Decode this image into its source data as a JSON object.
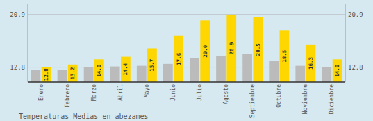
{
  "chart_data": {
    "type": "bar",
    "title": "Temperaturas Medias en abezames",
    "categories": [
      "Enero",
      "Febrero",
      "Marzo",
      "Abril",
      "Mayo",
      "Junio",
      "Julio",
      "Agosto",
      "Septiembre",
      "Octubre",
      "Noviembre",
      "Diciembre"
    ],
    "series": [
      {
        "color": "#BBBBBB",
        "values": [
          12.4,
          12.4,
          12.8,
          12.9,
          13.0,
          13.3,
          14.2,
          14.5,
          14.8,
          13.8,
          13.0,
          12.8
        ]
      },
      {
        "color": "#FFD700",
        "data_labels": true,
        "values": [
          12.8,
          13.2,
          14.0,
          14.4,
          15.7,
          17.6,
          20.0,
          20.9,
          20.5,
          18.5,
          16.3,
          14.0
        ],
        "value_labels": [
          "12.8",
          "13.2",
          "14.0",
          "14.4",
          "15.7",
          "17.6",
          "20.0",
          "20.9",
          "20.5",
          "18.5",
          "16.3",
          "14.0"
        ]
      }
    ],
    "ylim": [
      10.5,
      22.5
    ],
    "yticks": [
      12.8,
      20.9
    ],
    "y2lim": [
      10.5,
      22.5
    ],
    "y2ticks": [
      12.8,
      20.9
    ],
    "grid": true
  }
}
